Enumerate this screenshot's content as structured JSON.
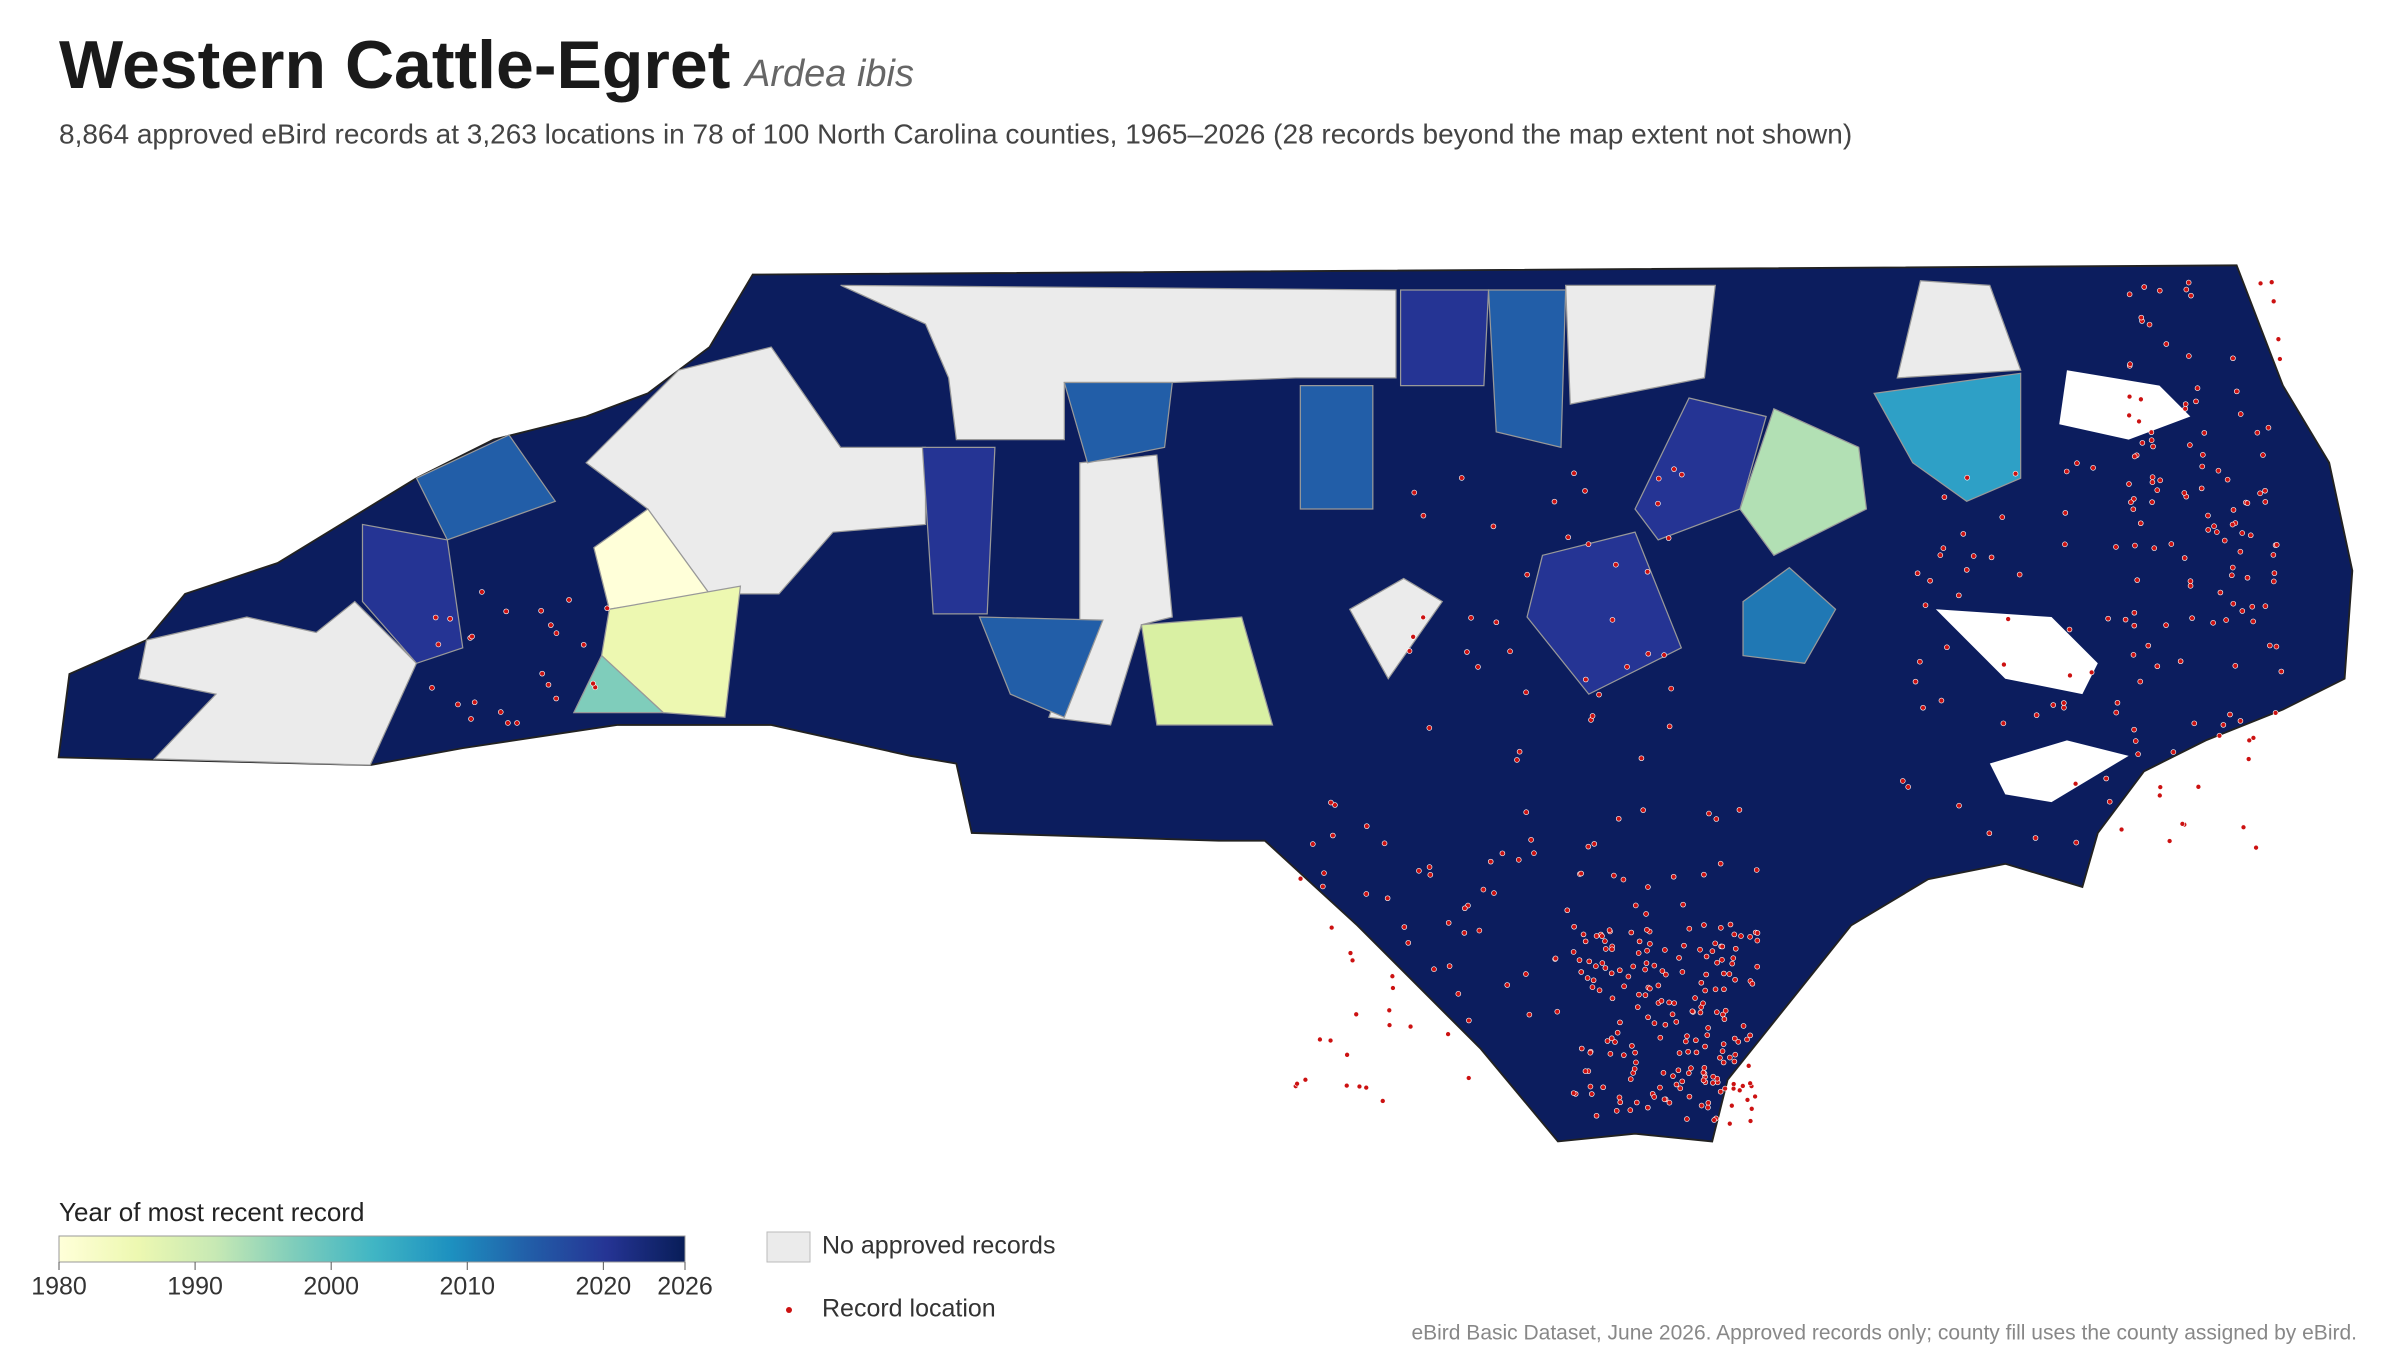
{
  "title": "Western Cattle-Egret",
  "scientific_name": "Ardea ibis",
  "subtitle": "8,864 approved eBird records at 3,263 locations in 78 of 100 North Carolina counties, 1965–2026 (28 records beyond the map extent not shown)",
  "legend": {
    "colorbar_title": "Year of most recent record",
    "colorbar": {
      "lim": [
        1980,
        2026
      ],
      "ticks": [
        1980,
        1990,
        2000,
        2010,
        2020,
        2026
      ],
      "colors": [
        "#ffffd9",
        "#edf8b1",
        "#c7e9b4",
        "#7fcdbb",
        "#41b6c4",
        "#1d91c0",
        "#225ea8",
        "#253494",
        "#081d58"
      ]
    },
    "no_records_label": "No approved records",
    "no_records_color": "#ebebeb",
    "record_label": "Record location",
    "record_color": "#cc1111"
  },
  "source": "eBird Basic Dataset, June 2026. Approved records only; county fill uses the county assigned by eBird."
}
